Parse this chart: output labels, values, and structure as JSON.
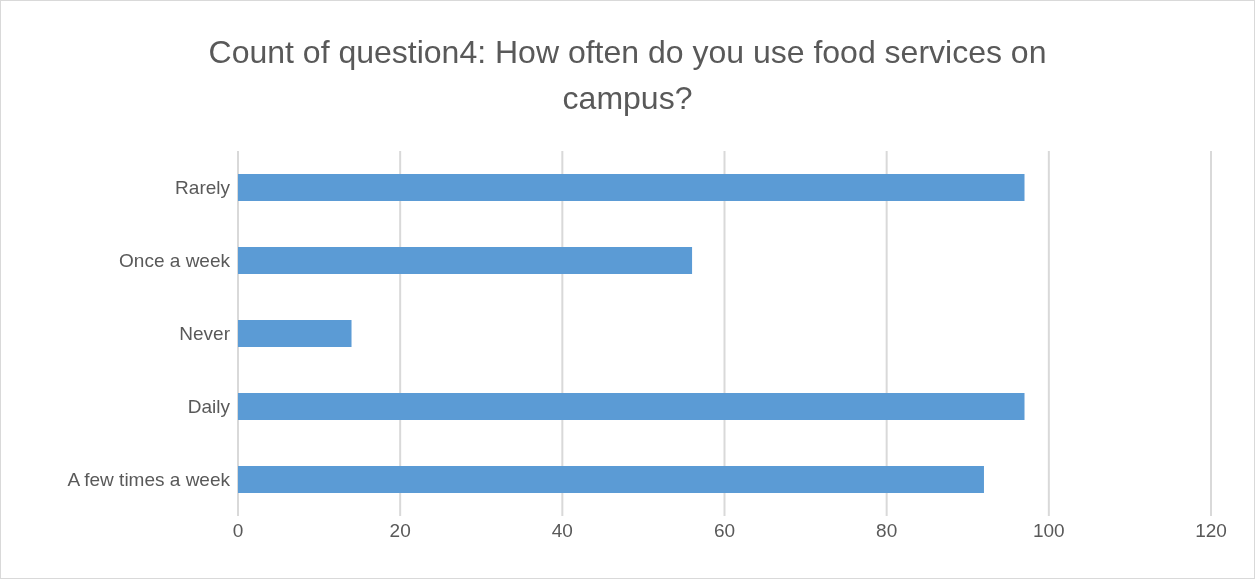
{
  "chart_data": {
    "type": "bar",
    "orientation": "horizontal",
    "title": "Count of question4: How often do you use food services on campus?",
    "categories": [
      "Rarely",
      "Once a week",
      "Never",
      "Daily",
      "A few times a week"
    ],
    "values": [
      97,
      56,
      14,
      97,
      92
    ],
    "color": "#5b9bd5",
    "xlim": [
      0,
      120
    ],
    "xticks": [
      0,
      20,
      40,
      60,
      80,
      100,
      120
    ],
    "grid": "x"
  }
}
